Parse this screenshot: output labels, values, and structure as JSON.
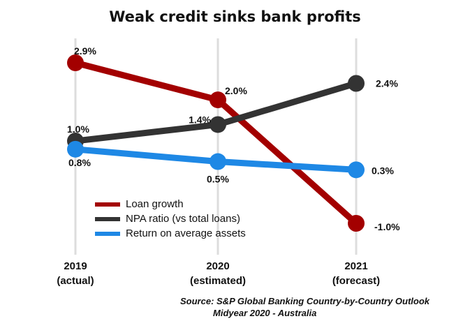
{
  "chart_data": {
    "type": "line",
    "title": "Weak credit sinks bank profits",
    "categories": [
      [
        "2019",
        "(actual)"
      ],
      [
        "2020",
        "(estimated)"
      ],
      [
        "2021",
        "(forecast)"
      ]
    ],
    "ylim": [
      -1.5,
      3.5
    ],
    "grid": "vertical",
    "legend_position": "bottom-left",
    "series": [
      {
        "name": "Loan growth",
        "values": [
          2.9,
          2.0,
          -1.0
        ],
        "labels": [
          "2.9%",
          "2.0%",
          "-1.0%"
        ],
        "color": "#a30000"
      },
      {
        "name": "NPA ratio (vs total loans)",
        "values": [
          1.0,
          1.4,
          2.4
        ],
        "labels": [
          "1.0%",
          "1.4%",
          "2.4%"
        ],
        "color": "#333333"
      },
      {
        "name": "Return on average assets",
        "values": [
          0.8,
          0.5,
          0.3
        ],
        "labels": [
          "0.8%",
          "0.5%",
          "0.3%"
        ],
        "color": "#1e88e5"
      }
    ]
  },
  "source": {
    "line1": "Source: S&P Global Banking Country-by-Country Outlook",
    "line2": "Midyear 2020  - Australia"
  }
}
